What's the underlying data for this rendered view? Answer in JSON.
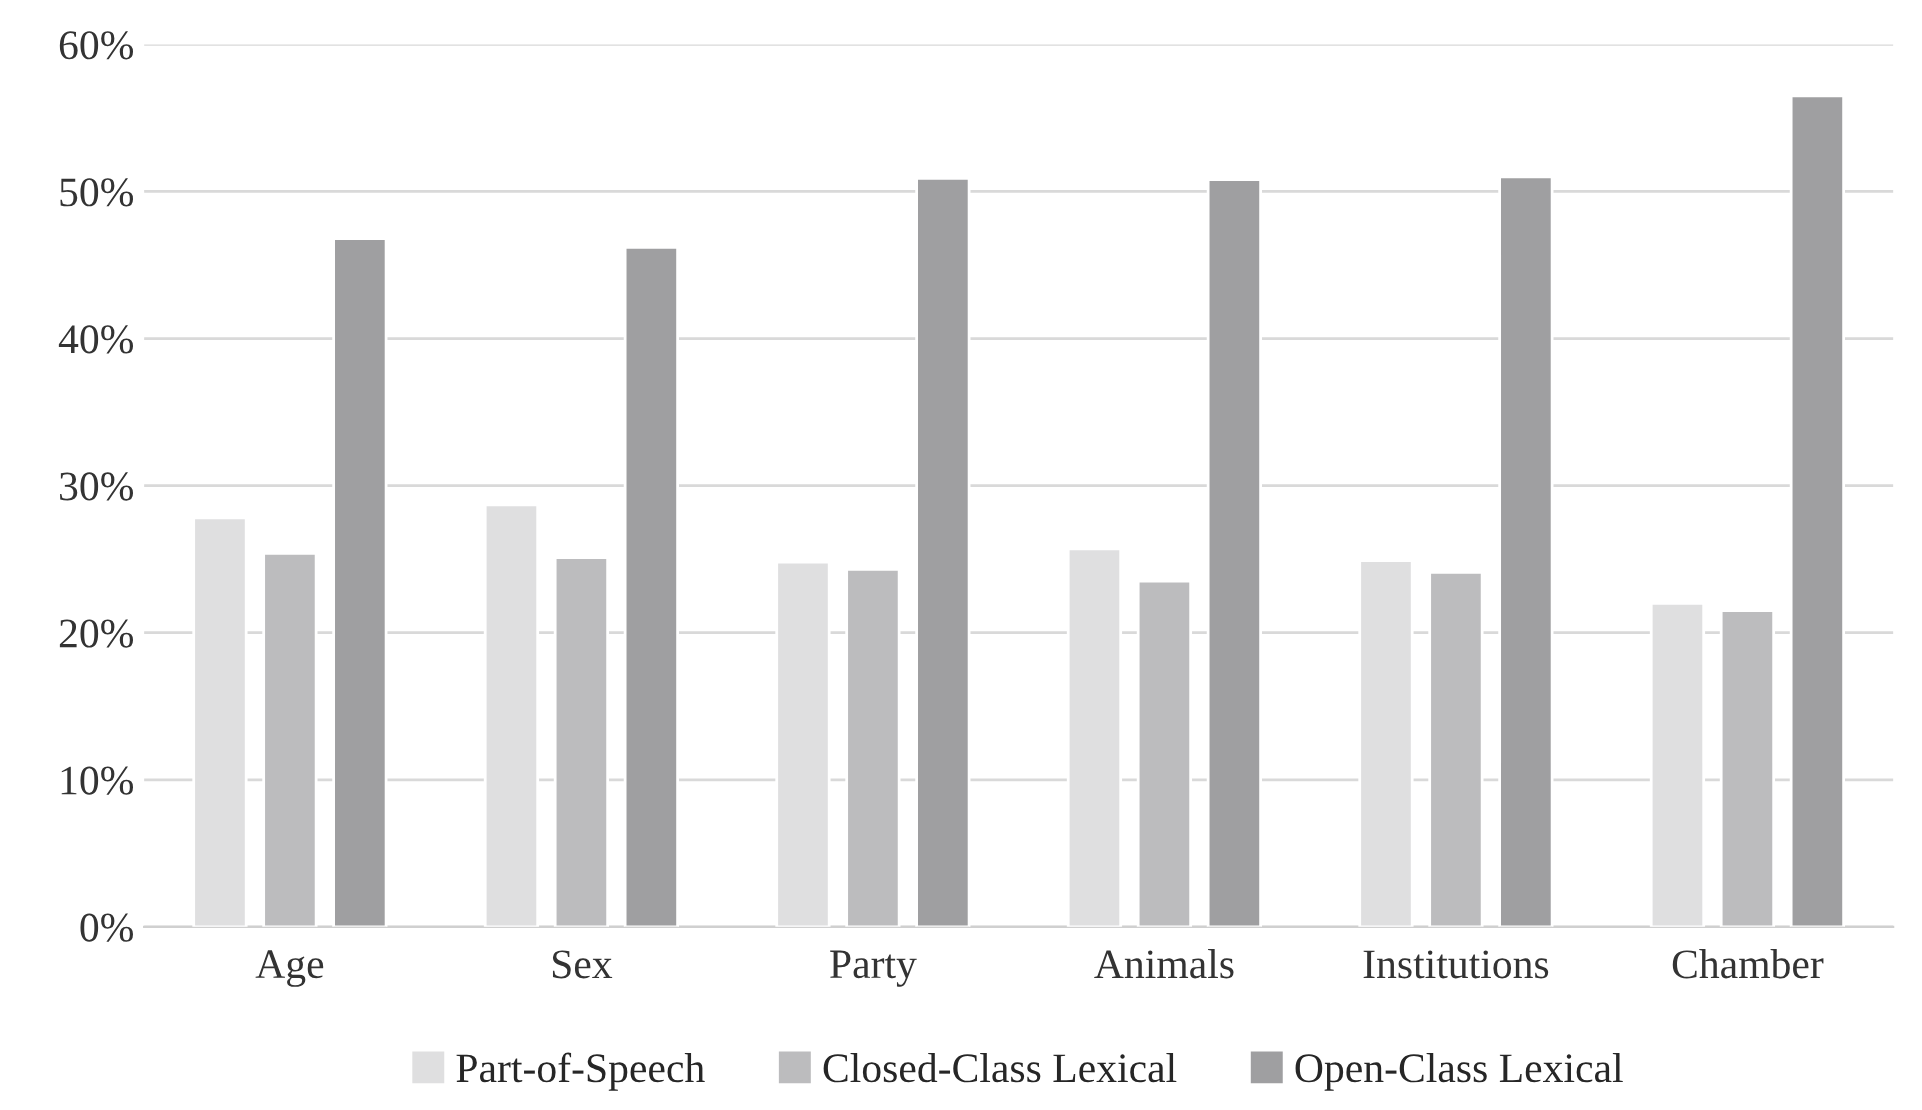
{
  "chart_data": {
    "type": "bar",
    "categories": [
      "Age",
      "Sex",
      "Party",
      "Animals",
      "Institutions",
      "Chamber"
    ],
    "series": [
      {
        "name": "Part-of-Speech",
        "color": "#dfdfe0",
        "values": [
          27.8,
          28.7,
          24.8,
          25.7,
          24.9,
          22.0
        ]
      },
      {
        "name": "Closed-Class Lexical",
        "color": "#bcbcbe",
        "values": [
          25.4,
          25.1,
          24.3,
          23.5,
          24.1,
          21.5
        ]
      },
      {
        "name": "Open-Class Lexical",
        "color": "#9f9fa1",
        "values": [
          46.8,
          46.2,
          50.9,
          50.8,
          51.0,
          56.5
        ]
      }
    ],
    "ylim": [
      0,
      60
    ],
    "yticks": [
      {
        "value": 0,
        "label": "0%"
      },
      {
        "value": 10,
        "label": "10%"
      },
      {
        "value": 20,
        "label": "20%"
      },
      {
        "value": 30,
        "label": "30%"
      },
      {
        "value": 40,
        "label": "40%"
      },
      {
        "value": 50,
        "label": "50%"
      },
      {
        "value": 60,
        "label": "60%"
      }
    ],
    "grid": "y",
    "legend": "bottom"
  }
}
